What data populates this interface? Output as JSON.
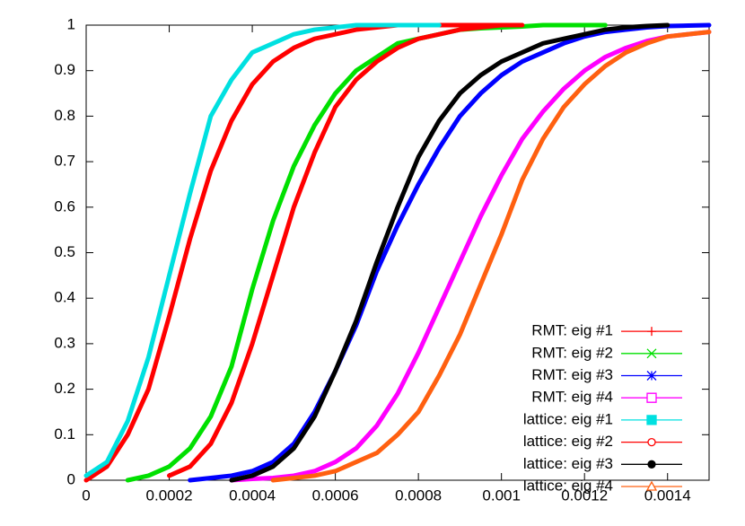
{
  "chart_data": {
    "type": "line",
    "x": [
      0,
      5e-05,
      0.0001,
      0.00015,
      0.0002,
      0.00025,
      0.0003,
      0.00035,
      0.0004,
      0.00045,
      0.0005,
      0.00055,
      0.0006,
      0.00065,
      0.0007,
      0.00075,
      0.0008,
      0.00085,
      0.0009,
      0.00095,
      0.001,
      0.00105,
      0.0011,
      0.00115,
      0.0012,
      0.00125,
      0.0013,
      0.00135,
      0.0014,
      0.00145,
      0.0015
    ],
    "xlim": [
      0,
      0.0015
    ],
    "xticks": [
      0,
      0.0002,
      0.0004,
      0.0006,
      0.0008,
      0.001,
      0.0012,
      0.0014
    ],
    "ylim": [
      0,
      1
    ],
    "yticks": [
      0,
      0.1,
      0.2,
      0.3,
      0.4,
      0.5,
      0.6,
      0.7,
      0.8,
      0.9,
      1
    ],
    "grid": false,
    "legend": "bottom-right",
    "series": [
      {
        "name": "RMT: eig #1",
        "color": "#ff0000",
        "marker": "plus",
        "values": [
          0,
          0.03,
          0.1,
          0.2,
          0.36,
          0.53,
          0.68,
          0.79,
          0.87,
          0.92,
          0.95,
          0.97,
          0.98,
          0.99,
          0.995,
          1,
          1,
          1,
          1,
          1,
          1,
          null,
          null,
          null,
          null,
          null,
          null,
          null,
          null,
          null,
          null
        ]
      },
      {
        "name": "RMT: eig #2",
        "color": "#00e000",
        "marker": "cross",
        "values": [
          null,
          null,
          0,
          0.01,
          0.03,
          0.07,
          0.14,
          0.25,
          0.42,
          0.57,
          0.69,
          0.78,
          0.85,
          0.9,
          0.93,
          0.96,
          0.97,
          0.98,
          0.99,
          0.993,
          0.995,
          0.997,
          1,
          1,
          1,
          1,
          null,
          null,
          null,
          null,
          null
        ]
      },
      {
        "name": "RMT: eig #3",
        "color": "#0000ff",
        "marker": "star",
        "values": [
          null,
          null,
          null,
          null,
          null,
          0,
          0.005,
          0.01,
          0.02,
          0.04,
          0.08,
          0.15,
          0.24,
          0.34,
          0.46,
          0.56,
          0.65,
          0.73,
          0.8,
          0.85,
          0.89,
          0.92,
          0.94,
          0.96,
          0.975,
          0.985,
          0.99,
          0.995,
          0.998,
          0.999,
          1
        ]
      },
      {
        "name": "RMT: eig #4",
        "color": "#ff00ff",
        "marker": "square",
        "values": [
          null,
          null,
          null,
          null,
          null,
          null,
          null,
          0,
          0.003,
          0.005,
          0.01,
          0.02,
          0.04,
          0.07,
          0.12,
          0.19,
          0.28,
          0.38,
          0.48,
          0.58,
          0.67,
          0.75,
          0.81,
          0.86,
          0.9,
          0.93,
          0.95,
          0.965,
          0.975,
          0.98,
          0.985
        ]
      },
      {
        "name": "lattice: eig #1",
        "color": "#00e0e0",
        "marker": "filled-square",
        "values": [
          0.01,
          0.04,
          0.13,
          0.27,
          0.45,
          0.63,
          0.8,
          0.88,
          0.94,
          0.96,
          0.98,
          0.99,
          0.995,
          1,
          1,
          1,
          1,
          1,
          null,
          null,
          null,
          null,
          null,
          null,
          null,
          null,
          null,
          null,
          null,
          null,
          null
        ]
      },
      {
        "name": "lattice: eig #2",
        "color": "#ff0000",
        "marker": "circle",
        "values": [
          null,
          null,
          null,
          null,
          0.01,
          0.03,
          0.08,
          0.17,
          0.3,
          0.45,
          0.6,
          0.72,
          0.82,
          0.88,
          0.92,
          0.95,
          0.97,
          0.98,
          0.99,
          0.995,
          1,
          1,
          null,
          null,
          null,
          null,
          null,
          null,
          null,
          null,
          null
        ]
      },
      {
        "name": "lattice: eig #3",
        "color": "#000000",
        "marker": "filled-circle",
        "values": [
          null,
          null,
          null,
          null,
          null,
          null,
          null,
          0,
          0.01,
          0.03,
          0.07,
          0.14,
          0.24,
          0.35,
          0.48,
          0.6,
          0.71,
          0.79,
          0.85,
          0.89,
          0.92,
          0.94,
          0.96,
          0.97,
          0.98,
          0.99,
          0.995,
          0.998,
          1,
          null,
          null
        ]
      },
      {
        "name": "lattice: eig #4",
        "color": "#ff6010",
        "marker": "triangle",
        "values": [
          null,
          null,
          null,
          null,
          null,
          null,
          null,
          null,
          null,
          0,
          0.005,
          0.01,
          0.02,
          0.04,
          0.06,
          0.1,
          0.15,
          0.23,
          0.32,
          0.43,
          0.54,
          0.66,
          0.75,
          0.82,
          0.87,
          0.91,
          0.94,
          0.96,
          0.975,
          0.98,
          0.985
        ]
      }
    ]
  }
}
